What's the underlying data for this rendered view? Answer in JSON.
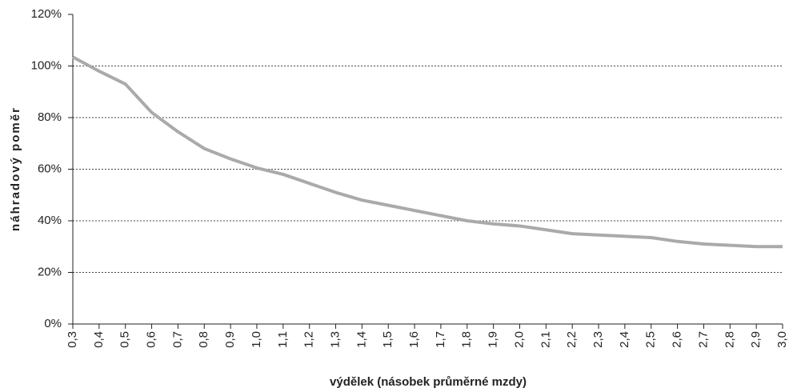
{
  "chart_data": {
    "type": "line",
    "xlabel": "výdělek (násobek průměrné mzdy)",
    "ylabel": "náhradový poměr",
    "categories": [
      "0,3",
      "0,4",
      "0,5",
      "0,6",
      "0,7",
      "0,8",
      "0,9",
      "1,0",
      "1,1",
      "1,2",
      "1,3",
      "1,4",
      "1,5",
      "1,6",
      "1,7",
      "1,8",
      "1,9",
      "2,0",
      "2,1",
      "2,2",
      "2,3",
      "2,4",
      "2,5",
      "2,6",
      "2,7",
      "2,8",
      "2,9",
      "3,0"
    ],
    "series": [
      {
        "color": "#aaaaaa",
        "values": [
          103.5,
          98,
          93,
          82,
          74.5,
          68,
          64,
          60.5,
          58,
          54.5,
          51,
          48,
          46,
          44,
          42,
          40,
          38.8,
          38,
          36.5,
          35,
          34.5,
          34,
          33.5,
          32,
          31,
          30.5,
          30,
          30
        ]
      }
    ],
    "ylim": [
      0,
      120
    ],
    "yticks": [
      {
        "value": 0,
        "label": "0%"
      },
      {
        "value": 20,
        "label": "20%"
      },
      {
        "value": 40,
        "label": "40%"
      },
      {
        "value": 60,
        "label": "60%"
      },
      {
        "value": 80,
        "label": "80%"
      },
      {
        "value": 100,
        "label": "100%"
      },
      {
        "value": 120,
        "label": "120%"
      }
    ],
    "grid": true
  }
}
